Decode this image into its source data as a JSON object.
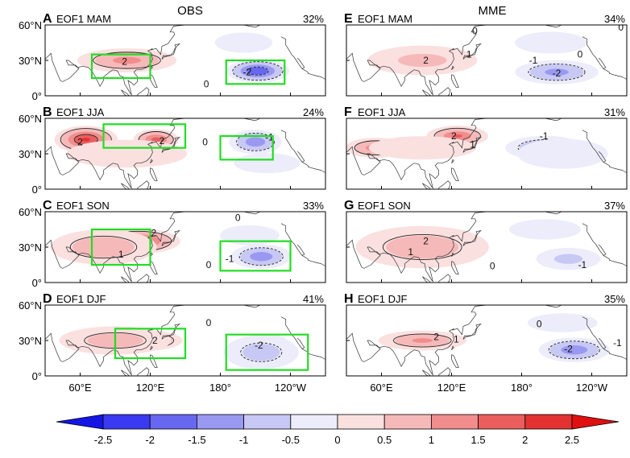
{
  "chart_data": {
    "type": "heatmap",
    "columns": [
      "OBS",
      "MME"
    ],
    "y_tick_labels": [
      "60°N",
      "30°N",
      "0°"
    ],
    "x_tick_labels": [
      "60°E",
      "120°E",
      "180°",
      "120°W"
    ],
    "lon_ticks_deg_east": [
      60,
      120,
      180,
      240
    ],
    "lat_ticks_deg": [
      60,
      30,
      0
    ],
    "lon_range_deg_east": [
      30,
      270
    ],
    "lat_range_deg": [
      0,
      60
    ],
    "panels": [
      {
        "letter": "A",
        "label": "EOF1 MAM",
        "percent": "32%",
        "column": "OBS",
        "features": [
          {
            "lon": 100,
            "lat": 30,
            "rlon": 50,
            "rlat": 12,
            "value": 1.4
          },
          {
            "lon": 212,
            "lat": 21,
            "rlon": 30,
            "rlat": 11,
            "value": -2.2
          },
          {
            "lon": 200,
            "lat": 45,
            "rlon": 40,
            "rlat": 14,
            "value": -0.4
          }
        ],
        "contour_labels": [
          {
            "text": "2",
            "lon": 98,
            "lat": 29
          },
          {
            "text": "0",
            "lon": 168,
            "lat": 10
          },
          {
            "text": "-2",
            "lon": 203,
            "lat": 20
          }
        ],
        "boxes": [
          {
            "lon": [
              70,
              120
            ],
            "lat": [
              15,
              35
            ]
          },
          {
            "lon": [
              185,
              235
            ],
            "lat": [
              10,
              30
            ]
          }
        ]
      },
      {
        "letter": "B",
        "label": "EOF1 JJA",
        "percent": "24%",
        "column": "OBS",
        "features": [
          {
            "lon": 65,
            "lat": 42,
            "rlon": 30,
            "rlat": 13,
            "value": 2.3
          },
          {
            "lon": 125,
            "lat": 42,
            "rlon": 22,
            "rlat": 10,
            "value": 1.9
          },
          {
            "lon": 100,
            "lat": 30,
            "rlon": 70,
            "rlat": 16,
            "value": 0.7
          },
          {
            "lon": 210,
            "lat": 40,
            "rlon": 26,
            "rlat": 12,
            "value": -1.6
          },
          {
            "lon": 220,
            "lat": 22,
            "rlon": 40,
            "rlat": 12,
            "value": -0.6
          }
        ],
        "contour_labels": [
          {
            "text": "2",
            "lon": 60,
            "lat": 40
          },
          {
            "text": "2",
            "lon": 130,
            "lat": 41
          },
          {
            "text": "-1",
            "lon": 222,
            "lat": 44
          },
          {
            "text": "0",
            "lon": 167,
            "lat": 40
          }
        ],
        "boxes": [
          {
            "lon": [
              80,
              150
            ],
            "lat": [
              35,
              55
            ]
          },
          {
            "lon": [
              180,
              225
            ],
            "lat": [
              25,
              45
            ]
          }
        ]
      },
      {
        "letter": "C",
        "label": "EOF1 SON",
        "percent": "33%",
        "column": "OBS",
        "features": [
          {
            "lon": 110,
            "lat": 35,
            "rlon": 40,
            "rlat": 12,
            "value": 2.1
          },
          {
            "lon": 80,
            "lat": 30,
            "rlon": 55,
            "rlat": 18,
            "value": 1.2
          },
          {
            "lon": 215,
            "lat": 22,
            "rlon": 30,
            "rlat": 12,
            "value": -1.6
          },
          {
            "lon": 205,
            "lat": 40,
            "rlon": 36,
            "rlat": 12,
            "value": -0.6
          }
        ],
        "contour_labels": [
          {
            "text": "2",
            "lon": 123,
            "lat": 42
          },
          {
            "text": "1",
            "lon": 95,
            "lat": 24
          },
          {
            "text": "0",
            "lon": 170,
            "lat": 15
          },
          {
            "text": "-1",
            "lon": 188,
            "lat": 20
          },
          {
            "text": "0",
            "lon": 195,
            "lat": 55
          }
        ],
        "boxes": [
          {
            "lon": [
              70,
              120
            ],
            "lat": [
              15,
              45
            ]
          },
          {
            "lon": [
              180,
              240
            ],
            "lat": [
              10,
              35
            ]
          }
        ]
      },
      {
        "letter": "D",
        "label": "EOF1 DJF",
        "percent": "41%",
        "column": "OBS",
        "features": [
          {
            "lon": 112,
            "lat": 30,
            "rlon": 40,
            "rlat": 10,
            "value": 2.1
          },
          {
            "lon": 90,
            "lat": 30,
            "rlon": 60,
            "rlat": 15,
            "value": 1.0
          },
          {
            "lon": 218,
            "lat": 25,
            "rlon": 25,
            "rlat": 12,
            "value": -2.3
          },
          {
            "lon": 215,
            "lat": 20,
            "rlon": 40,
            "rlat": 18,
            "value": -1.0
          }
        ],
        "contour_labels": [
          {
            "text": "2",
            "lon": 124,
            "lat": 30
          },
          {
            "text": "-2",
            "lon": 213,
            "lat": 26
          },
          {
            "text": "0",
            "lon": 170,
            "lat": 45
          }
        ],
        "boxes": [
          {
            "lon": [
              90,
              150
            ],
            "lat": [
              15,
              40
            ]
          },
          {
            "lon": [
              185,
              255
            ],
            "lat": [
              5,
              35
            ]
          }
        ]
      },
      {
        "letter": "E",
        "label": "EOF1 MAM",
        "percent": "34%",
        "column": "MME",
        "features": [
          {
            "lon": 95,
            "lat": 30,
            "rlon": 34,
            "rlat": 10,
            "value": 1.9
          },
          {
            "lon": 95,
            "lat": 30,
            "rlon": 60,
            "rlat": 16,
            "value": 0.9
          },
          {
            "lon": 210,
            "lat": 20,
            "rlon": 42,
            "rlat": 12,
            "value": -1.4
          },
          {
            "lon": 205,
            "lat": 45,
            "rlon": 50,
            "rlat": 15,
            "value": -0.4
          }
        ],
        "contour_labels": [
          {
            "text": "0",
            "lon": 140,
            "lat": 55
          },
          {
            "text": "2",
            "lon": 98,
            "lat": 30
          },
          {
            "text": "1",
            "lon": 135,
            "lat": 35
          },
          {
            "text": "-1",
            "lon": 190,
            "lat": 30
          },
          {
            "text": "-2",
            "lon": 210,
            "lat": 19
          },
          {
            "text": "0",
            "lon": 230,
            "lat": 35
          },
          {
            "text": "0",
            "lon": 265,
            "lat": 58
          }
        ],
        "boxes": []
      },
      {
        "letter": "F",
        "label": "EOF1 JJA",
        "percent": "31%",
        "column": "MME",
        "features": [
          {
            "lon": 125,
            "lat": 45,
            "rlon": 30,
            "rlat": 10,
            "value": 1.8
          },
          {
            "lon": 55,
            "lat": 35,
            "rlon": 30,
            "rlat": 10,
            "value": 1.5
          },
          {
            "lon": 95,
            "lat": 35,
            "rlon": 65,
            "rlat": 14,
            "value": 0.6
          },
          {
            "lon": 200,
            "lat": 35,
            "rlon": 40,
            "rlat": 12,
            "value": -1.4
          },
          {
            "lon": 215,
            "lat": 30,
            "rlon": 55,
            "rlat": 18,
            "value": -0.6
          }
        ],
        "contour_labels": [
          {
            "text": "2",
            "lon": 122,
            "lat": 45
          },
          {
            "text": "-1",
            "lon": 199,
            "lat": 45
          },
          {
            "text": "1",
            "lon": 138,
            "lat": 38
          }
        ],
        "boxes": []
      },
      {
        "letter": "G",
        "label": "EOF1 SON",
        "percent": "37%",
        "column": "MME",
        "features": [
          {
            "lon": 95,
            "lat": 33,
            "rlon": 30,
            "rlat": 12,
            "value": 2.4
          },
          {
            "lon": 95,
            "lat": 30,
            "rlon": 70,
            "rlat": 22,
            "value": 1.1
          },
          {
            "lon": 220,
            "lat": 20,
            "rlon": 35,
            "rlat": 12,
            "value": -0.9
          },
          {
            "lon": 200,
            "lat": 45,
            "rlon": 50,
            "rlat": 14,
            "value": -0.4
          }
        ],
        "contour_labels": [
          {
            "text": "2",
            "lon": 98,
            "lat": 35
          },
          {
            "text": "-1",
            "lon": 232,
            "lat": 15
          },
          {
            "text": "0",
            "lon": 155,
            "lat": 14
          },
          {
            "text": "1",
            "lon": 85,
            "lat": 26
          }
        ],
        "boxes": []
      },
      {
        "letter": "H",
        "label": "EOF1 DJF",
        "percent": "35%",
        "column": "MME",
        "features": [
          {
            "lon": 95,
            "lat": 30,
            "rlon": 45,
            "rlat": 10,
            "value": 1.3
          },
          {
            "lon": 225,
            "lat": 22,
            "rlon": 35,
            "rlat": 12,
            "value": -1.6
          },
          {
            "lon": 215,
            "lat": 45,
            "rlon": 45,
            "rlat": 12,
            "value": -0.5
          }
        ],
        "contour_labels": [
          {
            "text": "2",
            "lon": 107,
            "lat": 33
          },
          {
            "text": "1",
            "lon": 124,
            "lat": 31
          },
          {
            "text": "0",
            "lon": 195,
            "lat": 44
          },
          {
            "text": "-1",
            "lon": 262,
            "lat": 28
          },
          {
            "text": "-2",
            "lon": 220,
            "lat": 23
          }
        ],
        "boxes": []
      }
    ],
    "colorbar": {
      "levels": [
        -2.5,
        -2,
        -1.5,
        -1,
        -0.5,
        0,
        0.5,
        1,
        1.5,
        2,
        2.5
      ],
      "tick_labels": [
        "-2.5",
        "-2",
        "-1.5",
        "-1",
        "-0.5",
        "0",
        "0.5",
        "1",
        "1.5",
        "2",
        "2.5"
      ],
      "colors": [
        "#1515e6",
        "#3a3af0",
        "#6767f2",
        "#9999f2",
        "#c8c8f5",
        "#ececfb",
        "#fbe0e0",
        "#f6b9b9",
        "#f18d8d",
        "#ea5e5e",
        "#e33232",
        "#e01010"
      ]
    },
    "box_color": "#22dd22"
  }
}
